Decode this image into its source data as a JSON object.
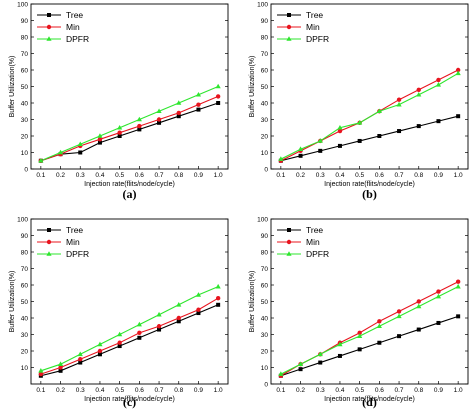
{
  "colors": {
    "Tree": "#000000",
    "Min": "#e8141e",
    "DPFR": "#2ee62e"
  },
  "chart_data": [
    {
      "type": "line",
      "panel_label": "(a)",
      "xlabel": "Injection rate(flits/node/cycle)",
      "ylabel": "Buffer Utilization(%)",
      "x": [
        0.1,
        0.2,
        0.3,
        0.4,
        0.5,
        0.6,
        0.7,
        0.8,
        0.9,
        1.0
      ],
      "x_ticks": [
        "0.1",
        "0.2",
        "0.3",
        "0.4",
        "0.5",
        "0.6",
        "0.7",
        "0.8",
        "0.9",
        "1.0"
      ],
      "xlim": [
        0.05,
        1.05
      ],
      "ylim": [
        0,
        100
      ],
      "y_ticks": [
        "0",
        "10",
        "20",
        "30",
        "40",
        "50",
        "60",
        "70",
        "80",
        "90",
        "100"
      ],
      "legend_position": "top-left",
      "series": [
        {
          "name": "Tree",
          "marker": "square",
          "values": [
            5,
            9,
            10,
            16,
            20,
            24,
            28,
            32,
            36,
            40
          ]
        },
        {
          "name": "Min",
          "marker": "circle",
          "values": [
            5,
            9,
            14,
            18,
            22,
            26,
            30,
            34,
            39,
            44
          ]
        },
        {
          "name": "DPFR",
          "marker": "triangle",
          "values": [
            5,
            10,
            15,
            20,
            25,
            30,
            35,
            40,
            45,
            50
          ]
        }
      ]
    },
    {
      "type": "line",
      "panel_label": "(b)",
      "xlabel": "Injection rate(flits/node/cycle)",
      "ylabel": "Buffer Utilization(%)",
      "x": [
        0.1,
        0.2,
        0.3,
        0.4,
        0.5,
        0.6,
        0.7,
        0.8,
        0.9,
        1.0
      ],
      "x_ticks": [
        "0.1",
        "0.2",
        "0.3",
        "0.4",
        "0.5",
        "0.6",
        "0.7",
        "0.8",
        "0.9",
        "1.0"
      ],
      "xlim": [
        0.05,
        1.05
      ],
      "ylim": [
        0,
        100
      ],
      "y_ticks": [
        "0",
        "10",
        "20",
        "30",
        "40",
        "50",
        "60",
        "70",
        "80",
        "90",
        "100"
      ],
      "legend_position": "top-left",
      "series": [
        {
          "name": "Tree",
          "marker": "square",
          "values": [
            5,
            8,
            11,
            14,
            17,
            20,
            23,
            26,
            29,
            32
          ]
        },
        {
          "name": "Min",
          "marker": "circle",
          "values": [
            5,
            11,
            17,
            23,
            28,
            35,
            42,
            48,
            54,
            60
          ]
        },
        {
          "name": "DPFR",
          "marker": "triangle",
          "values": [
            6,
            12,
            17,
            25,
            28,
            35,
            39,
            45,
            51,
            58
          ]
        }
      ]
    },
    {
      "type": "line",
      "panel_label": "(c)",
      "xlabel": "Injection rate(flits/node/cycle)",
      "ylabel": "Buffer Utilization(%)",
      "x": [
        0.1,
        0.2,
        0.3,
        0.4,
        0.5,
        0.6,
        0.7,
        0.8,
        0.9,
        1.0
      ],
      "x_ticks": [
        "0.1",
        "0.2",
        "0.3",
        "0.4",
        "0.5",
        "0.6",
        "0.7",
        "0.8",
        "0.9",
        "1.0"
      ],
      "xlim": [
        0.05,
        1.05
      ],
      "ylim": [
        0,
        100
      ],
      "y_ticks": [
        "10",
        "20",
        "30",
        "40",
        "50",
        "60",
        "70",
        "80",
        "90",
        "100"
      ],
      "legend_position": "top-left",
      "series": [
        {
          "name": "Tree",
          "marker": "square",
          "values": [
            5,
            8,
            13,
            18,
            23,
            28,
            33,
            38,
            43,
            48
          ]
        },
        {
          "name": "Min",
          "marker": "circle",
          "values": [
            6,
            10,
            15,
            20,
            25,
            31,
            35,
            40,
            45,
            52
          ]
        },
        {
          "name": "DPFR",
          "marker": "triangle",
          "values": [
            8,
            12,
            18,
            24,
            30,
            36,
            42,
            48,
            54,
            59
          ]
        }
      ]
    },
    {
      "type": "line",
      "panel_label": "(d)",
      "xlabel": "Injection rate(flits/node/cycle)",
      "ylabel": "Buffer Utilization(%)",
      "x": [
        0.1,
        0.2,
        0.3,
        0.4,
        0.5,
        0.6,
        0.7,
        0.8,
        0.9,
        1.0
      ],
      "x_ticks": [
        "0.1",
        "0.2",
        "0.3",
        "0.4",
        "0.5",
        "0.6",
        "0.7",
        "0.8",
        "0.9",
        "1.0"
      ],
      "xlim": [
        0.05,
        1.05
      ],
      "ylim": [
        0,
        100
      ],
      "y_ticks": [
        "0",
        "10",
        "20",
        "30",
        "40",
        "50",
        "60",
        "70",
        "80",
        "90",
        "100"
      ],
      "legend_position": "top-left",
      "series": [
        {
          "name": "Tree",
          "marker": "square",
          "values": [
            5,
            9,
            13,
            17,
            21,
            25,
            29,
            33,
            37,
            41
          ]
        },
        {
          "name": "Min",
          "marker": "circle",
          "values": [
            5,
            12,
            18,
            25,
            31,
            38,
            44,
            50,
            56,
            62
          ]
        },
        {
          "name": "DPFR",
          "marker": "triangle",
          "values": [
            6,
            12,
            18,
            24,
            29,
            35,
            41,
            47,
            53,
            59
          ]
        }
      ]
    }
  ]
}
